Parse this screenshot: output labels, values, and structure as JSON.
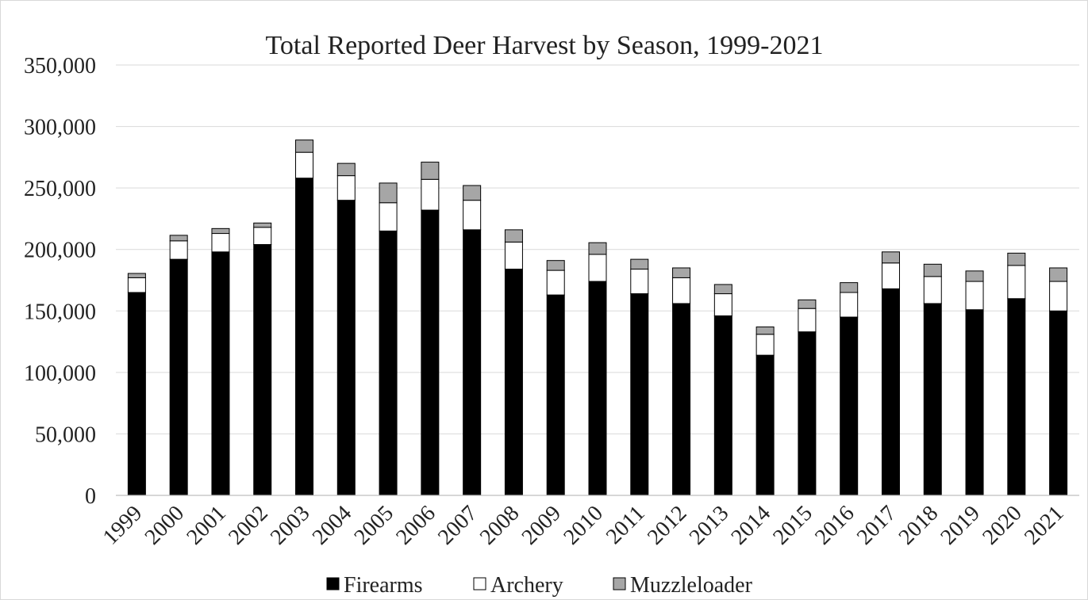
{
  "chart_data": {
    "type": "bar",
    "stacked": true,
    "title": "Total Reported Deer Harvest by Season, 1999-2021",
    "xlabel": "",
    "ylabel": "",
    "ylim": [
      0,
      350000
    ],
    "yticks": [
      0,
      50000,
      100000,
      150000,
      200000,
      250000,
      300000,
      350000
    ],
    "ytick_labels": [
      "0",
      "50,000",
      "100,000",
      "150,000",
      "200,000",
      "250,000",
      "300,000",
      "350,000"
    ],
    "grid": true,
    "legend_position": "bottom",
    "categories": [
      "1999",
      "2000",
      "2001",
      "2002",
      "2003",
      "2004",
      "2005",
      "2006",
      "2007",
      "2008",
      "2009",
      "2010",
      "2011",
      "2012",
      "2013",
      "2014",
      "2015",
      "2016",
      "2017",
      "2018",
      "2019",
      "2020",
      "2021"
    ],
    "series": [
      {
        "name": "Firearms",
        "color": "#000000",
        "values": [
          165000,
          192000,
          198000,
          204000,
          258000,
          240000,
          215000,
          232000,
          216000,
          184000,
          163000,
          174000,
          164000,
          156000,
          146000,
          114000,
          133000,
          145000,
          168000,
          156000,
          151000,
          160000,
          150000
        ]
      },
      {
        "name": "Archery",
        "color": "#ffffff",
        "values": [
          12000,
          15000,
          15000,
          14000,
          21000,
          20000,
          23000,
          25000,
          24000,
          22000,
          20000,
          22000,
          20000,
          21000,
          18000,
          17000,
          19000,
          20000,
          21000,
          22000,
          23000,
          27000,
          24000
        ]
      },
      {
        "name": "Muzzleloader",
        "color": "#a6a6a6",
        "values": [
          3500,
          4500,
          4000,
          3500,
          10000,
          10000,
          16000,
          14000,
          12000,
          10000,
          8000,
          9500,
          8000,
          8000,
          7500,
          6000,
          7000,
          8000,
          9000,
          10000,
          8500,
          10000,
          11000
        ]
      }
    ]
  }
}
